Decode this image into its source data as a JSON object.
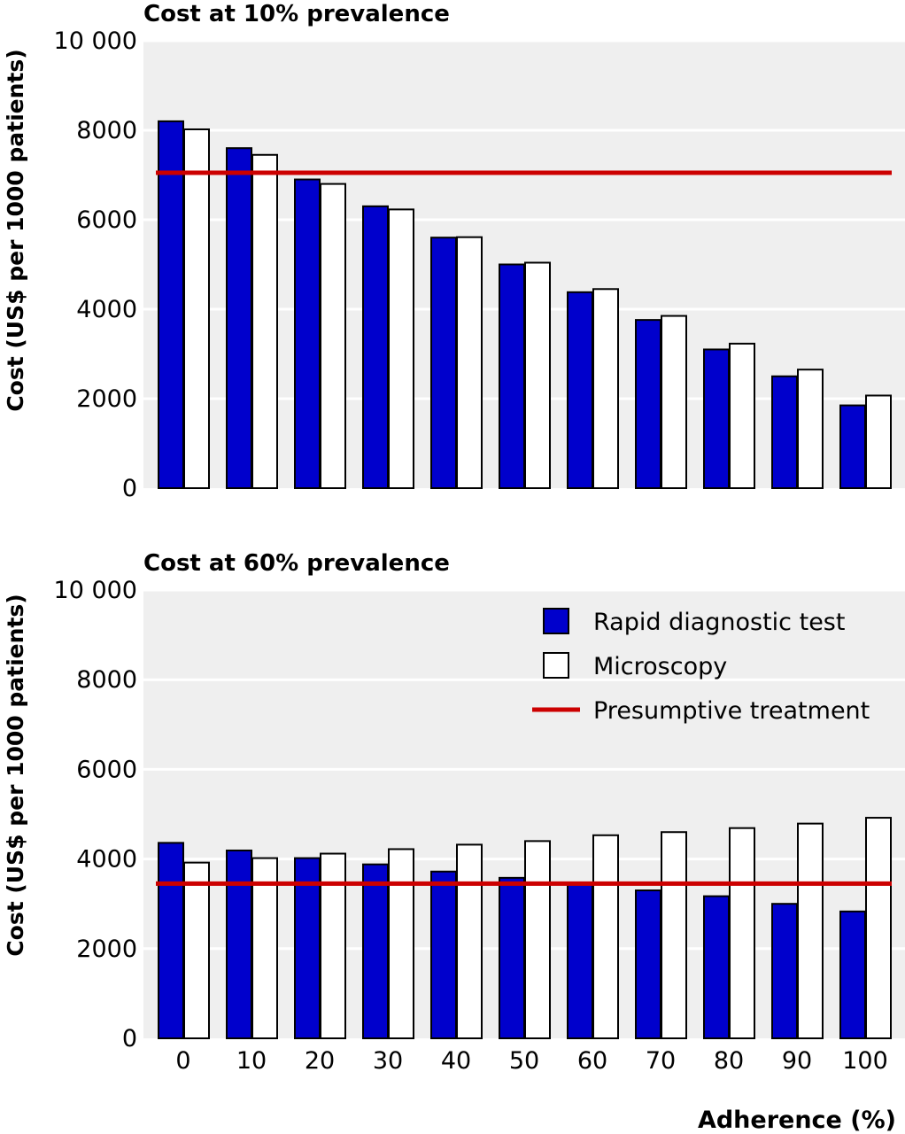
{
  "chart_data": [
    {
      "type": "bar",
      "title": "Cost at 10% prevalence",
      "ylabel": "Cost (US$ per 1000 patients)",
      "xlabel": "",
      "ylim": [
        0,
        10000
      ],
      "yticks": [
        "0",
        "2000",
        "4000",
        "6000",
        "8000",
        "10 000"
      ],
      "categories": [
        "0",
        "10",
        "20",
        "30",
        "40",
        "50",
        "60",
        "70",
        "80",
        "90",
        "100"
      ],
      "series": [
        {
          "name": "Rapid diagnostic test",
          "color": "#0000cc",
          "values": [
            8200,
            7600,
            6900,
            6300,
            5600,
            5000,
            4380,
            3760,
            3100,
            2500,
            1850
          ]
        },
        {
          "name": "Microscopy",
          "color": "#ffffff",
          "values": [
            8020,
            7450,
            6800,
            6230,
            5610,
            5040,
            4450,
            3850,
            3230,
            2650,
            2070
          ]
        }
      ],
      "reference_line": {
        "name": "Presumptive treatment",
        "color": "#cc0000",
        "value": 7050
      },
      "grid": true
    },
    {
      "type": "bar",
      "title": "Cost at 60% prevalence",
      "ylabel": "Cost (US$ per 1000 patients)",
      "xlabel": "Adherence (%)",
      "ylim": [
        0,
        10000
      ],
      "yticks": [
        "0",
        "2000",
        "4000",
        "6000",
        "8000",
        "10 000"
      ],
      "categories": [
        "0",
        "10",
        "20",
        "30",
        "40",
        "50",
        "60",
        "70",
        "80",
        "90",
        "100"
      ],
      "series": [
        {
          "name": "Rapid diagnostic test",
          "color": "#0000cc",
          "values": [
            4360,
            4190,
            4020,
            3880,
            3720,
            3580,
            3450,
            3300,
            3170,
            3000,
            2830
          ]
        },
        {
          "name": "Microscopy",
          "color": "#ffffff",
          "values": [
            3920,
            4020,
            4120,
            4220,
            4320,
            4400,
            4530,
            4600,
            4690,
            4790,
            4920
          ]
        }
      ],
      "reference_line": {
        "name": "Presumptive treatment",
        "color": "#cc0000",
        "value": 3450
      },
      "grid": true,
      "legend": {
        "placement": "top-right",
        "items": [
          "Rapid diagnostic test",
          "Microscopy",
          "Presumptive treatment"
        ]
      }
    }
  ]
}
